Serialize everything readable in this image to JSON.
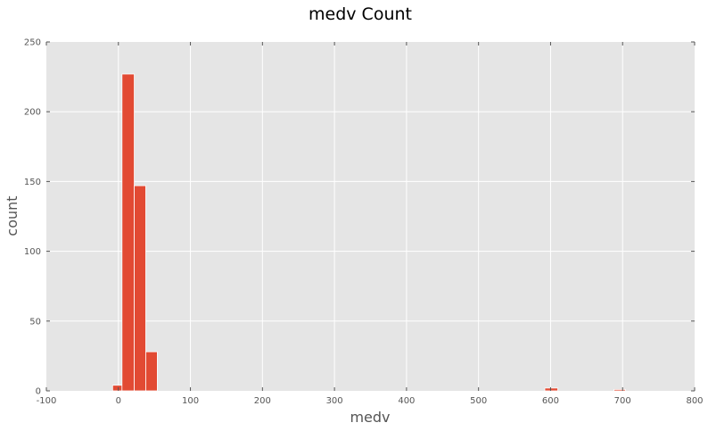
{
  "chart_data": {
    "type": "bar",
    "title": "medv Count",
    "xlabel": "medv",
    "ylabel": "count",
    "xlim": [
      -100,
      800
    ],
    "ylim": [
      0,
      250
    ],
    "xticks": [
      -100,
      0,
      100,
      200,
      300,
      400,
      500,
      600,
      700,
      800
    ],
    "yticks": [
      0,
      50,
      100,
      150,
      200,
      250
    ],
    "grid": true,
    "colors": {
      "bar": "#E24A33",
      "plot_background": "#E5E5E5",
      "grid": "#FFFFFF",
      "text": "#555555"
    },
    "bins": [
      {
        "x0": -8,
        "x1": 5,
        "count": 4
      },
      {
        "x0": 5,
        "x1": 22,
        "count": 227
      },
      {
        "x0": 22,
        "x1": 38,
        "count": 147
      },
      {
        "x0": 38,
        "x1": 54,
        "count": 28
      },
      {
        "x0": 592,
        "x1": 610,
        "count": 2
      },
      {
        "x0": 688,
        "x1": 704,
        "count": 1
      }
    ]
  }
}
